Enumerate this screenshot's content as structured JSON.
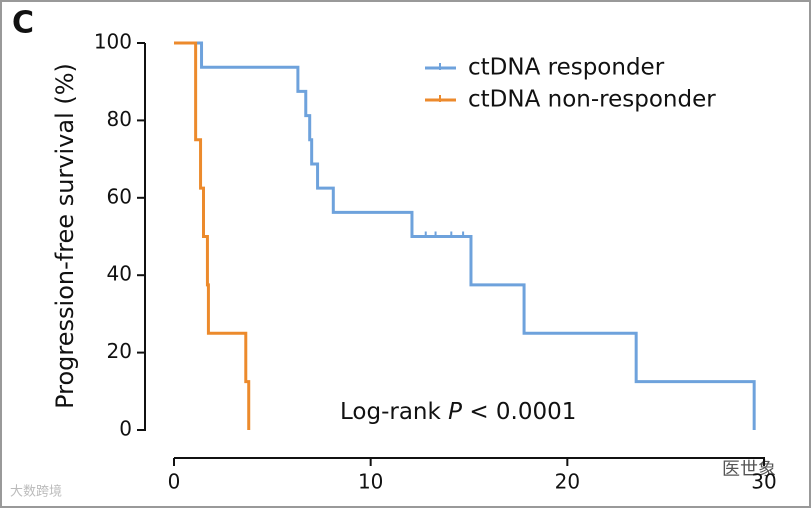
{
  "panel_label": "C",
  "watermarks": [
    "大数跨境",
    "医世象"
  ],
  "chart_data": {
    "type": "step",
    "ylabel": "Progression-free survival (%)",
    "xlim": [
      0,
      30
    ],
    "xticks": [
      0,
      10,
      20,
      30
    ],
    "ylim": [
      0,
      100
    ],
    "yticks": [
      0,
      20,
      40,
      60,
      80,
      100
    ],
    "annotation": [
      "Log-rank ",
      "P",
      " < 0.0001"
    ],
    "series": [
      {
        "name": "ctDNA responder",
        "color": "#6ea2dc",
        "x": [
          0,
          1.4,
          6.3,
          6.7,
          6.9,
          7.0,
          7.3,
          8.1,
          12.1,
          15.1,
          17.8,
          23.5,
          29.5
        ],
        "values": [
          100,
          93.75,
          87.5,
          81.25,
          75,
          68.75,
          62.5,
          56.25,
          50,
          37.5,
          25,
          12.5,
          0
        ],
        "censor_x": [
          12.8,
          13.3,
          14.1,
          14.7
        ],
        "censor_values": [
          50,
          50,
          50,
          50
        ]
      },
      {
        "name": "ctDNA non-responder",
        "color": "#ec8a2c",
        "x": [
          0,
          1.1,
          1.35,
          1.5,
          1.7,
          1.75,
          3.65,
          3.8
        ],
        "values": [
          100,
          75,
          62.5,
          50,
          37.5,
          25,
          12.5,
          0
        ],
        "censor_x": [],
        "censor_values": []
      }
    ]
  }
}
